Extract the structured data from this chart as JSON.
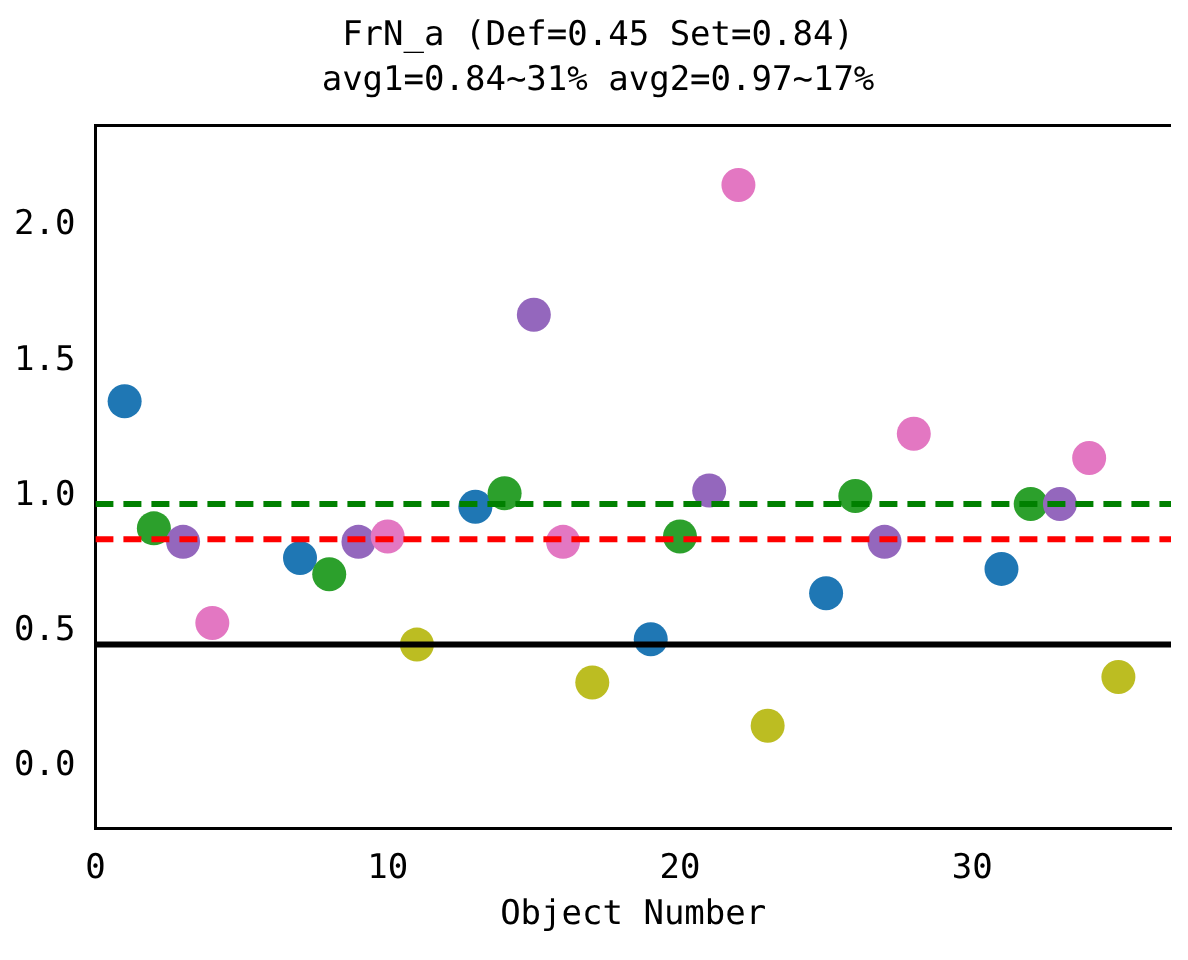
{
  "chart_data": {
    "type": "scatter",
    "title": "FrN_a (Def=0.45 Set=0.84)",
    "subtitle": "avg1=0.84~31% avg2=0.97~17%",
    "xlabel": "Object Number",
    "x": [
      1,
      2,
      3,
      4,
      7,
      8,
      9,
      10,
      11,
      13,
      14,
      15,
      16,
      17,
      19,
      20,
      21,
      22,
      23,
      25,
      26,
      27,
      28,
      31,
      32,
      33,
      34,
      35
    ],
    "values": [
      1.35,
      0.88,
      0.83,
      0.53,
      0.77,
      0.71,
      0.83,
      0.85,
      0.45,
      0.96,
      1.01,
      1.67,
      0.83,
      0.31,
      0.47,
      0.85,
      1.02,
      2.15,
      0.15,
      0.64,
      1.0,
      0.83,
      1.23,
      0.73,
      0.97,
      0.97,
      1.14,
      0.33
    ],
    "colors": [
      "#1f77b4",
      "#2ca02c",
      "#9467bd",
      "#e377c2",
      "#1f77b4",
      "#2ca02c",
      "#9467bd",
      "#e377c2",
      "#bcbd22",
      "#1f77b4",
      "#2ca02c",
      "#9467bd",
      "#e377c2",
      "#bcbd22",
      "#1f77b4",
      "#2ca02c",
      "#9467bd",
      "#e377c2",
      "#bcbd22",
      "#1f77b4",
      "#2ca02c",
      "#9467bd",
      "#e377c2",
      "#1f77b4",
      "#2ca02c",
      "#9467bd",
      "#e377c2",
      "#bcbd22"
    ],
    "marker": "circle",
    "xlim": [
      0,
      36.8
    ],
    "xticks": [
      0,
      10,
      20,
      30
    ],
    "ylim": [
      -0.23,
      2.37
    ],
    "yticks": [
      {
        "value": 0,
        "label": "0.0"
      },
      {
        "value": 0.5,
        "label": "0.5"
      },
      {
        "value": 1,
        "label": "1.0"
      },
      {
        "value": 1.5,
        "label": "1.5"
      },
      {
        "value": 2,
        "label": "2.0"
      }
    ],
    "ref_lines": [
      {
        "axis": "y",
        "value": 0.45,
        "color": "#000000",
        "line_style": "solid"
      },
      {
        "axis": "y",
        "value": 0.84,
        "color": "#ff0000",
        "line_style": "dashed"
      },
      {
        "axis": "y",
        "value": 0.97,
        "color": "#008000",
        "line_style": "dashed"
      }
    ],
    "grid": false,
    "legend": false
  }
}
